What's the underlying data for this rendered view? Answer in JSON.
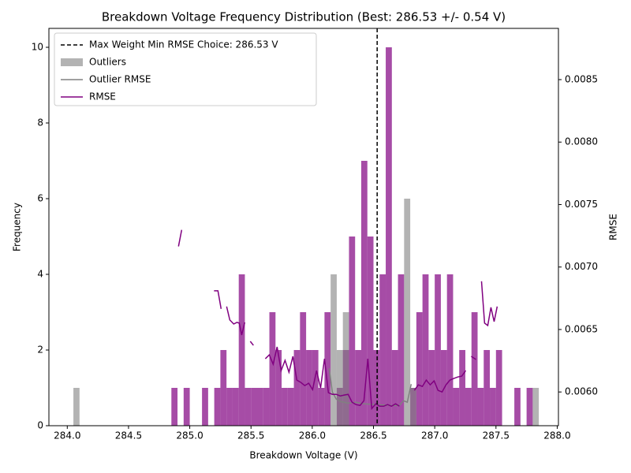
{
  "chart_data": {
    "type": "histogram",
    "title": "Breakdown Voltage Frequency Distribution (Best: 286.53 +/- 0.54 V)",
    "xlabel": "Breakdown Voltage (V)",
    "ylabel": "Frequency",
    "y2label": "RMSE",
    "y2_color": "orange",
    "xlim": [
      283.85,
      288.01
    ],
    "ylim": [
      0,
      10.5
    ],
    "y2lim": [
      0.00573,
      0.00891
    ],
    "xticks": [
      {
        "value": 284,
        "label": "284.0"
      },
      284.5,
      {
        "value": 285,
        "label": "285.0"
      },
      285.5,
      {
        "value": 286,
        "label": "286.0"
      },
      286.5,
      {
        "value": 287,
        "label": "287.0"
      },
      287.5,
      {
        "value": 288,
        "label": "288.0"
      }
    ],
    "yticks": [
      0,
      2,
      4,
      6,
      8,
      10
    ],
    "y2ticks": [
      {
        "value": 0.006,
        "label": "0.0060"
      },
      0.0065,
      {
        "value": 0.007,
        "label": "0.0070"
      },
      0.0075,
      {
        "value": 0.008,
        "label": "0.0080"
      },
      0.0085
    ],
    "bins": [
      284,
      284.05,
      284.1,
      284.15,
      284.2,
      284.25,
      284.3,
      284.35,
      284.4,
      284.45,
      284.5,
      284.55,
      284.6,
      284.65,
      284.7,
      284.75,
      284.8,
      284.85,
      284.9,
      284.95,
      285,
      285.05,
      285.1,
      285.15,
      285.2,
      285.25,
      285.3,
      285.35,
      285.4,
      285.45,
      285.5,
      285.55,
      285.6,
      285.65,
      285.7,
      285.75,
      285.8,
      285.85,
      285.9,
      285.95,
      286,
      286.05,
      286.1,
      286.15,
      286.2,
      286.25,
      286.3,
      286.35,
      286.4,
      286.45,
      286.5,
      286.55,
      286.6,
      286.65,
      286.7,
      286.75,
      286.8,
      286.85,
      286.9,
      286.95,
      287,
      287.05,
      287.1,
      287.15,
      287.2,
      287.25,
      287.3,
      287.35,
      287.4,
      287.45,
      287.5,
      287.55,
      287.6,
      287.65,
      287.7,
      287.75,
      287.8,
      287.85,
      287.9,
      287.95,
      288
    ],
    "series": [
      {
        "color": "purple",
        "values": [
          0,
          0,
          0,
          0,
          0,
          0,
          0,
          0,
          0,
          0,
          0,
          0,
          0,
          0,
          0,
          0,
          0,
          1,
          0,
          1,
          0,
          0,
          1,
          0,
          1,
          2,
          1,
          1,
          4,
          1,
          1,
          1,
          1,
          3,
          2,
          1,
          1,
          2,
          3,
          2,
          2,
          1,
          3,
          0,
          1,
          2,
          5,
          2,
          7,
          5,
          2,
          4,
          10,
          2,
          4,
          0,
          1,
          3,
          4,
          2,
          4,
          2,
          4,
          1,
          2,
          1,
          3,
          1,
          2,
          1,
          2,
          0,
          0,
          1,
          0,
          1,
          0,
          0,
          0,
          0
        ]
      },
      {
        "name": "Outliers",
        "color": "gray",
        "values": [
          0,
          1,
          0,
          0,
          0,
          0,
          0,
          0,
          0,
          0,
          0,
          0,
          0,
          0,
          0,
          0,
          0,
          0,
          0,
          0,
          0,
          0,
          0,
          0,
          0,
          0,
          0,
          0,
          0,
          0,
          0,
          0,
          0,
          0,
          0,
          0,
          0,
          0,
          0,
          0,
          0,
          0,
          0,
          4,
          2,
          3,
          0,
          0,
          0,
          0,
          0,
          0,
          0,
          0,
          0,
          6,
          1,
          0,
          0,
          0,
          0,
          0,
          0,
          0,
          0,
          0,
          0,
          0,
          0,
          0,
          0,
          0,
          0,
          0,
          0,
          0,
          1,
          0,
          0,
          0
        ]
      }
    ],
    "lines": [
      {
        "name": "Outlier RMSE",
        "color": "gray",
        "axis": "y2",
        "x": [
          286.138,
          286.164,
          286.196,
          286.229,
          286.293,
          286.357,
          286.422,
          286.647,
          286.712,
          286.744,
          286.776,
          286.808
        ],
        "values": [
          0.00619,
          0.006,
          0.005943,
          0.005924,
          0.005911,
          0.005918,
          0.005905,
          0.005892,
          0.005892,
          0.00593,
          0.005918,
          0.006063
        ]
      },
      {
        "name": "RMSE",
        "color": "purple",
        "axis": "y2",
        "x": [
          284.908,
          284.934,
          null,
          285.198,
          285.23,
          285.256,
          null,
          285.301,
          285.327,
          285.359,
          285.385,
          285.404,
          285.424,
          285.449,
          null,
          285.494,
          285.52,
          null,
          285.617,
          285.649,
          285.681,
          285.713,
          285.746,
          285.778,
          285.81,
          285.842,
          285.874,
          285.907,
          285.939,
          285.971,
          286.003,
          286.035,
          286.068,
          286.1,
          286.132,
          286.164,
          286.196,
          286.229,
          286.261,
          286.293,
          286.325,
          286.357,
          286.39,
          286.422,
          286.454,
          286.486,
          286.519,
          286.551,
          286.583,
          286.615,
          286.647,
          286.68,
          286.712,
          null,
          286.834,
          286.866,
          286.899,
          286.931,
          286.963,
          286.995,
          287.027,
          287.06,
          287.092,
          287.124,
          287.156,
          287.188,
          287.221,
          287.253,
          null,
          287.298,
          287.337,
          null,
          287.382,
          287.407,
          287.433,
          287.459,
          287.485,
          287.51
        ],
        "values": [
          0.007165,
          0.007297,
          null,
          0.00681,
          0.00681,
          0.006665,
          null,
          0.006684,
          0.006576,
          0.006544,
          0.006557,
          0.006551,
          0.006456,
          0.006557,
          null,
          0.006405,
          0.006373,
          null,
          0.006266,
          0.006297,
          0.006222,
          0.006361,
          0.006171,
          0.006253,
          0.006158,
          0.006285,
          0.006095,
          0.006076,
          0.006051,
          0.00607,
          0.006019,
          0.006171,
          0.006032,
          0.006266,
          0.005994,
          0.005981,
          0.005981,
          0.005968,
          0.005975,
          0.005981,
          0.005918,
          0.005899,
          0.005892,
          0.00593,
          0.006266,
          0.005867,
          0.005905,
          0.005886,
          0.005886,
          0.005899,
          0.005886,
          0.005905,
          0.005886,
          null,
          0.006013,
          0.006057,
          0.006044,
          0.006095,
          0.006057,
          0.006089,
          0.006013,
          0.006,
          0.006057,
          0.006095,
          0.006108,
          0.00612,
          0.006127,
          0.006171,
          null,
          0.006285,
          0.00626,
          null,
          0.006886,
          0.006551,
          0.006532,
          0.006677,
          0.006563,
          0.006684
        ]
      }
    ],
    "vline": {
      "x": 286.53,
      "label": "Max Weight Min RMSE Choice: 286.53 V",
      "color": "black"
    },
    "legend": "upper left"
  }
}
